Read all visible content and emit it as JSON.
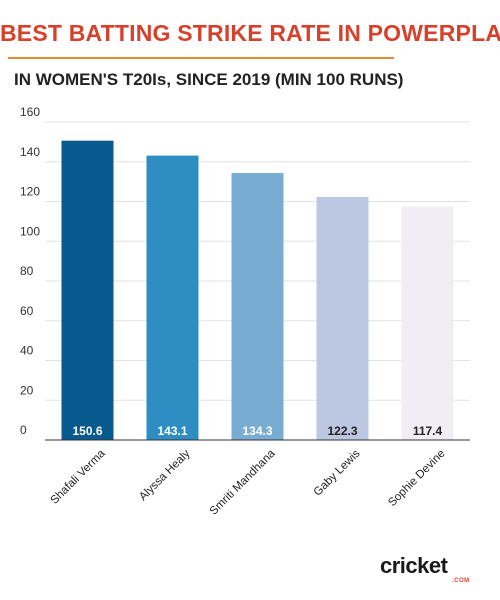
{
  "header": {
    "title": "BEST BATTING STRIKE RATE IN POWERPLAY",
    "subtitle": "IN WOMEN'S T20Is, SINCE 2019 (MIN 100 RUNS)"
  },
  "colors": {
    "title": "#d6412b",
    "accent_rule": "#e58a2d",
    "bars": [
      "#065a8e",
      "#2e8ec4",
      "#78add1",
      "#bcc8e2",
      "#f0edf5"
    ],
    "value_label_light": "#ffffff",
    "value_label_dark": "#222222"
  },
  "chart_data": {
    "type": "bar",
    "title": "BEST BATTING STRIKE RATE IN POWERPLAY",
    "subtitle": "IN WOMEN'S T20Is, SINCE 2019 (MIN 100 RUNS)",
    "categories": [
      "Shafali Verma",
      "Alyssa Healy",
      "Smriti Mandhana",
      "Gaby Lewis",
      "Sophie Devine"
    ],
    "values": [
      150.6,
      143.1,
      134.3,
      122.3,
      117.4
    ],
    "value_labels": [
      "150.6",
      "143.1",
      "134.3",
      "122.3",
      "117.4"
    ],
    "ylim": [
      0,
      160
    ],
    "yticks": [
      0,
      20,
      40,
      60,
      80,
      100,
      120,
      140,
      160
    ],
    "xlabel": "",
    "ylabel": "",
    "grid": true,
    "legend": "none"
  },
  "brand": {
    "logo_text": "cricket",
    "logo_sub": ".COM"
  }
}
